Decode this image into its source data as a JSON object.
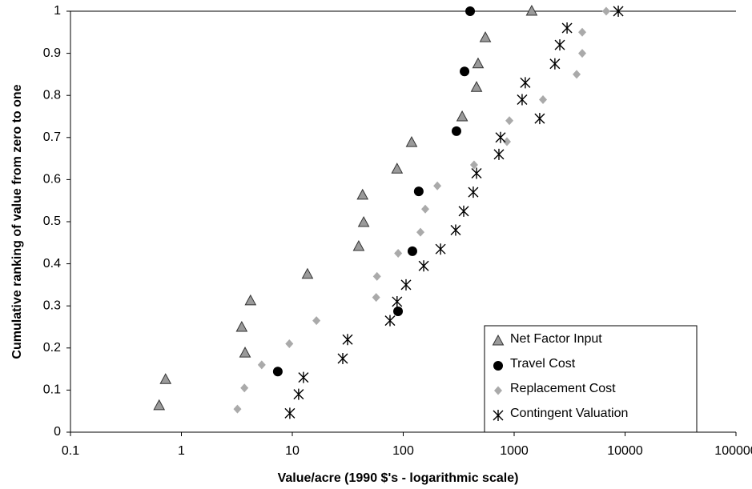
{
  "chart_data": {
    "type": "scatter",
    "xlabel": "Value/acre (1990 $'s - logarithmic scale)",
    "ylabel": "Cumulative ranking of value from zero to one",
    "xscale": "log",
    "xlim": [
      0.1,
      100000
    ],
    "xticks": [
      0.1,
      1,
      10,
      100,
      1000,
      10000,
      100000
    ],
    "ylim": [
      0,
      1
    ],
    "yticks": [
      0,
      0.1,
      0.2,
      0.3,
      0.4,
      0.5,
      0.6,
      0.7,
      0.8,
      0.9,
      1
    ],
    "legend": "lower right",
    "series": [
      {
        "name": "Net Factor Input",
        "color": "#9a9a9a",
        "marker": "triangle",
        "x": [
          0.63,
          0.72,
          3.75,
          3.5,
          4.2,
          13.7,
          39.7,
          44,
          43,
          88,
          119,
          340,
          458,
          473,
          550,
          1440
        ],
        "values": [
          0.063,
          0.125,
          0.188,
          0.249,
          0.312,
          0.375,
          0.441,
          0.498,
          0.563,
          0.625,
          0.688,
          0.749,
          0.819,
          0.875,
          0.937,
          1.0
        ]
      },
      {
        "name": "Travel Cost",
        "color": "#000000",
        "marker": "circle",
        "x": [
          7.4,
          89.8,
          121,
          138,
          302,
          357,
          401
        ],
        "values": [
          0.144,
          0.287,
          0.43,
          0.572,
          0.715,
          0.857,
          1.0
        ]
      },
      {
        "name": "Replacement Cost",
        "color": "#aaaaaa",
        "marker": "diamond",
        "x": [
          3.2,
          3.7,
          5.3,
          9.4,
          16.5,
          57,
          58,
          90,
          143,
          158,
          203,
          435,
          861,
          906,
          1820,
          3660,
          4110,
          4110,
          6760
        ],
        "values": [
          0.055,
          0.105,
          0.16,
          0.21,
          0.265,
          0.32,
          0.37,
          0.425,
          0.475,
          0.53,
          0.585,
          0.635,
          0.69,
          0.74,
          0.79,
          0.85,
          0.9,
          0.95,
          1.0
        ]
      },
      {
        "name": "Contingent Valuation",
        "color": "#000000",
        "marker": "asterisk",
        "x": [
          9.5,
          11.4,
          12.6,
          28.5,
          31.5,
          76,
          88,
          106,
          153,
          217,
          297,
          351,
          428,
          458,
          729,
          754,
          1180,
          1260,
          1700,
          2330,
          2580,
          3000,
          8690
        ],
        "values": [
          0.045,
          0.09,
          0.13,
          0.175,
          0.22,
          0.265,
          0.31,
          0.35,
          0.395,
          0.435,
          0.48,
          0.525,
          0.57,
          0.615,
          0.66,
          0.7,
          0.79,
          0.83,
          0.745,
          0.875,
          0.92,
          0.96,
          1.0
        ]
      }
    ]
  }
}
